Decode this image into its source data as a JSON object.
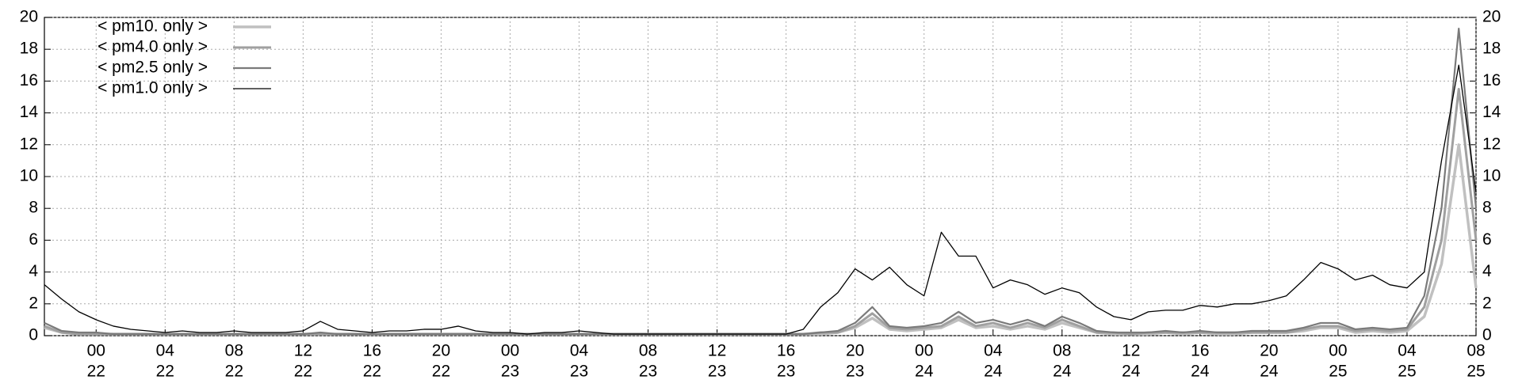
{
  "chart_data": {
    "type": "line",
    "x": [
      "21 21",
      "21 22",
      "21 23",
      "22 00",
      "22 01",
      "22 02",
      "22 03",
      "22 04",
      "22 05",
      "22 06",
      "22 07",
      "22 08",
      "22 09",
      "22 10",
      "22 11",
      "22 12",
      "22 13",
      "22 14",
      "22 15",
      "22 16",
      "22 17",
      "22 18",
      "22 19",
      "22 20",
      "22 21",
      "22 22",
      "22 23",
      "23 00",
      "23 01",
      "23 02",
      "23 03",
      "23 04",
      "23 05",
      "23 06",
      "23 07",
      "23 08",
      "23 09",
      "23 10",
      "23 11",
      "23 12",
      "23 13",
      "23 14",
      "23 15",
      "23 16",
      "23 17",
      "23 18",
      "23 19",
      "23 20",
      "23 21",
      "23 22",
      "23 23",
      "24 00",
      "24 01",
      "24 02",
      "24 03",
      "24 04",
      "24 05",
      "24 06",
      "24 07",
      "24 08",
      "24 09",
      "24 10",
      "24 11",
      "24 12",
      "24 13",
      "24 14",
      "24 15",
      "24 16",
      "24 17",
      "24 18",
      "24 19",
      "24 20",
      "24 21",
      "24 22",
      "24 23",
      "25 00",
      "25 01",
      "25 02",
      "25 03",
      "25 04",
      "25 05",
      "25 06",
      "25 07",
      "25 08"
    ],
    "series": [
      {
        "name": "< pm10. only >",
        "color": "#c0c0c0",
        "width": 3.5,
        "values": [
          0.5,
          0.2,
          0.1,
          0.1,
          0.1,
          0.1,
          0.1,
          0.1,
          0.1,
          0.1,
          0.1,
          0.1,
          0.1,
          0.1,
          0.1,
          0.1,
          0.1,
          0.1,
          0.1,
          0.1,
          0.1,
          0.1,
          0.1,
          0.1,
          0.1,
          0.1,
          0.1,
          0.1,
          0.1,
          0.1,
          0.1,
          0.1,
          0.1,
          0.1,
          0.1,
          0.1,
          0.1,
          0.1,
          0.1,
          0.1,
          0.1,
          0.1,
          0.1,
          0.1,
          0.1,
          0.1,
          0.2,
          0.5,
          1.1,
          0.4,
          0.3,
          0.4,
          0.5,
          1.0,
          0.5,
          0.6,
          0.4,
          0.6,
          0.4,
          0.8,
          0.5,
          0.2,
          0.1,
          0.1,
          0.1,
          0.2,
          0.1,
          0.2,
          0.1,
          0.1,
          0.2,
          0.2,
          0.2,
          0.3,
          0.5,
          0.5,
          0.2,
          0.3,
          0.2,
          0.3,
          1.2,
          4.5,
          12.0,
          3.0
        ]
      },
      {
        "name": "< pm4.0 only >",
        "color": "#a0a0a0",
        "width": 3,
        "values": [
          0.6,
          0.2,
          0.1,
          0.1,
          0.1,
          0.1,
          0.1,
          0.1,
          0.1,
          0.1,
          0.1,
          0.1,
          0.1,
          0.1,
          0.1,
          0.1,
          0.1,
          0.1,
          0.1,
          0.1,
          0.1,
          0.1,
          0.1,
          0.1,
          0.1,
          0.1,
          0.1,
          0.1,
          0.1,
          0.1,
          0.1,
          0.1,
          0.1,
          0.1,
          0.1,
          0.1,
          0.1,
          0.1,
          0.1,
          0.1,
          0.1,
          0.1,
          0.1,
          0.1,
          0.1,
          0.2,
          0.2,
          0.6,
          1.4,
          0.5,
          0.4,
          0.5,
          0.6,
          1.2,
          0.6,
          0.8,
          0.5,
          0.8,
          0.5,
          1.0,
          0.6,
          0.2,
          0.2,
          0.1,
          0.2,
          0.2,
          0.2,
          0.2,
          0.2,
          0.2,
          0.2,
          0.2,
          0.2,
          0.4,
          0.6,
          0.6,
          0.3,
          0.4,
          0.3,
          0.4,
          1.8,
          6.0,
          15.5,
          6.0
        ]
      },
      {
        "name": "< pm2.5 only >",
        "color": "#7a7a7a",
        "width": 2.2,
        "values": [
          0.8,
          0.3,
          0.2,
          0.2,
          0.1,
          0.1,
          0.1,
          0.1,
          0.1,
          0.1,
          0.1,
          0.1,
          0.1,
          0.1,
          0.1,
          0.1,
          0.2,
          0.1,
          0.1,
          0.1,
          0.1,
          0.1,
          0.1,
          0.1,
          0.1,
          0.1,
          0.1,
          0.1,
          0.1,
          0.1,
          0.1,
          0.1,
          0.1,
          0.1,
          0.1,
          0.1,
          0.1,
          0.1,
          0.1,
          0.1,
          0.1,
          0.1,
          0.1,
          0.1,
          0.1,
          0.2,
          0.3,
          0.8,
          1.8,
          0.6,
          0.5,
          0.6,
          0.8,
          1.5,
          0.8,
          1.0,
          0.7,
          1.0,
          0.6,
          1.2,
          0.8,
          0.3,
          0.2,
          0.2,
          0.2,
          0.3,
          0.2,
          0.3,
          0.2,
          0.2,
          0.3,
          0.3,
          0.3,
          0.5,
          0.8,
          0.8,
          0.4,
          0.5,
          0.4,
          0.5,
          2.5,
          8.0,
          19.3,
          8.0
        ]
      },
      {
        "name": "< pm1.0 only >",
        "color": "#000000",
        "width": 1.3,
        "values": [
          3.2,
          2.3,
          1.5,
          1.0,
          0.6,
          0.4,
          0.3,
          0.2,
          0.3,
          0.2,
          0.2,
          0.3,
          0.2,
          0.2,
          0.2,
          0.3,
          0.9,
          0.4,
          0.3,
          0.2,
          0.3,
          0.3,
          0.4,
          0.4,
          0.6,
          0.3,
          0.2,
          0.2,
          0.1,
          0.2,
          0.2,
          0.3,
          0.2,
          0.1,
          0.1,
          0.1,
          0.1,
          0.1,
          0.1,
          0.1,
          0.1,
          0.1,
          0.1,
          0.1,
          0.4,
          1.8,
          2.7,
          4.2,
          3.5,
          4.3,
          3.2,
          2.5,
          6.5,
          5.0,
          5.0,
          3.0,
          3.5,
          3.2,
          2.6,
          3.0,
          2.7,
          1.8,
          1.2,
          1.0,
          1.5,
          1.6,
          1.6,
          1.9,
          1.8,
          2.0,
          2.0,
          2.2,
          2.5,
          3.5,
          4.6,
          4.2,
          3.5,
          3.8,
          3.2,
          3.0,
          4.0,
          11.0,
          17.0,
          9.0
        ]
      }
    ],
    "ylim": [
      0,
      20
    ],
    "yticks": [
      0,
      2,
      4,
      6,
      8,
      10,
      12,
      14,
      16,
      18,
      20
    ],
    "xticks": [
      {
        "value": "22 00",
        "label": [
          "00",
          "22"
        ]
      },
      {
        "value": "22 04",
        "label": [
          "04",
          "22"
        ]
      },
      {
        "value": "22 08",
        "label": [
          "08",
          "22"
        ]
      },
      {
        "value": "22 12",
        "label": [
          "12",
          "22"
        ]
      },
      {
        "value": "22 16",
        "label": [
          "16",
          "22"
        ]
      },
      {
        "value": "22 20",
        "label": [
          "20",
          "22"
        ]
      },
      {
        "value": "23 00",
        "label": [
          "00",
          "23"
        ]
      },
      {
        "value": "23 04",
        "label": [
          "04",
          "23"
        ]
      },
      {
        "value": "23 08",
        "label": [
          "08",
          "23"
        ]
      },
      {
        "value": "23 12",
        "label": [
          "12",
          "23"
        ]
      },
      {
        "value": "23 16",
        "label": [
          "16",
          "23"
        ]
      },
      {
        "value": "23 20",
        "label": [
          "20",
          "23"
        ]
      },
      {
        "value": "24 00",
        "label": [
          "00",
          "24"
        ]
      },
      {
        "value": "24 04",
        "label": [
          "04",
          "24"
        ]
      },
      {
        "value": "24 08",
        "label": [
          "08",
          "24"
        ]
      },
      {
        "value": "24 12",
        "label": [
          "12",
          "24"
        ]
      },
      {
        "value": "24 16",
        "label": [
          "16",
          "24"
        ]
      },
      {
        "value": "24 20",
        "label": [
          "20",
          "24"
        ]
      },
      {
        "value": "25 00",
        "label": [
          "00",
          "25"
        ]
      },
      {
        "value": "25 04",
        "label": [
          "04",
          "25"
        ]
      },
      {
        "value": "25 08",
        "label": [
          "08",
          "25"
        ]
      }
    ],
    "grid": true,
    "legend": "top-left",
    "mirror_y_axis": true
  }
}
